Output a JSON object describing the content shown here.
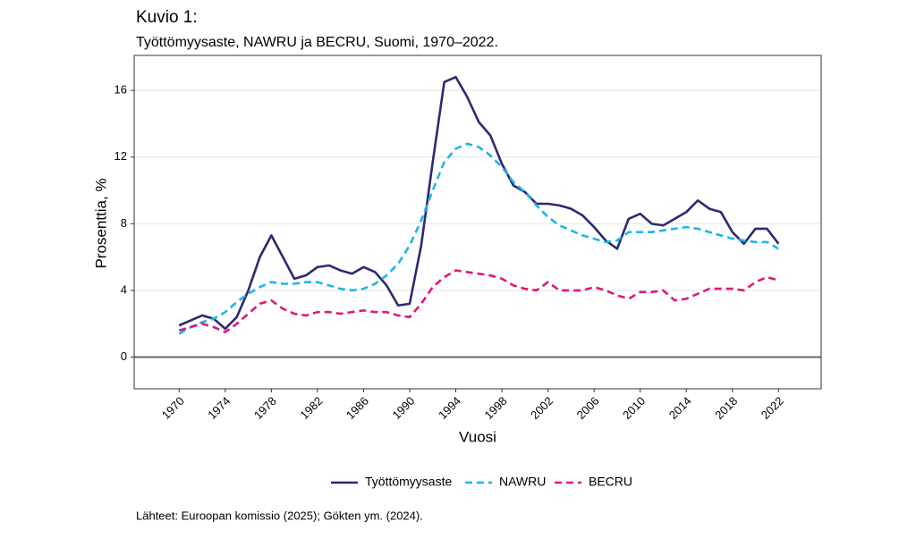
{
  "chart_data": {
    "type": "line",
    "title": "Kuvio 1:",
    "subtitle": "Työttömyysaste, NAWRU ja BECRU, Suomi, 1970–2022.",
    "x_label": "Vuosi",
    "y_label": "Prosenttia, %",
    "source": "Lähteet: Euroopan komissio (2025); Gökten ym. (2024).",
    "x": [
      1970,
      1971,
      1972,
      1973,
      1974,
      1975,
      1976,
      1977,
      1978,
      1979,
      1980,
      1981,
      1982,
      1983,
      1984,
      1985,
      1986,
      1987,
      1988,
      1989,
      1990,
      1991,
      1992,
      1993,
      1994,
      1995,
      1996,
      1997,
      1998,
      1999,
      2000,
      2001,
      2002,
      2003,
      2004,
      2005,
      2006,
      2007,
      2008,
      2009,
      2010,
      2011,
      2012,
      2013,
      2014,
      2015,
      2016,
      2017,
      2018,
      2019,
      2020,
      2021,
      2022
    ],
    "series": [
      {
        "name": "Työttömyysaste",
        "color": "#2b2a73",
        "linestyle": "solid",
        "values": [
          1.9,
          2.2,
          2.5,
          2.3,
          1.7,
          2.4,
          4.0,
          6.0,
          7.3,
          6.0,
          4.7,
          4.9,
          5.4,
          5.5,
          5.2,
          5.0,
          5.4,
          5.1,
          4.3,
          3.1,
          3.2,
          6.7,
          11.7,
          16.5,
          16.8,
          15.6,
          14.1,
          13.3,
          11.6,
          10.3,
          9.9,
          9.2,
          9.2,
          9.1,
          8.9,
          8.5,
          7.8,
          7.0,
          6.5,
          8.3,
          8.6,
          8.0,
          7.9,
          8.3,
          8.7,
          9.4,
          8.9,
          8.7,
          7.5,
          6.8,
          7.7,
          7.7,
          6.8
        ]
      },
      {
        "name": "NAWRU",
        "color": "#1fb5e8",
        "linestyle": "dashed",
        "values": [
          1.4,
          1.8,
          2.1,
          2.3,
          2.7,
          3.3,
          3.8,
          4.2,
          4.5,
          4.4,
          4.4,
          4.5,
          4.5,
          4.3,
          4.1,
          4.0,
          4.1,
          4.4,
          4.9,
          5.6,
          6.7,
          8.2,
          10.0,
          11.7,
          12.5,
          12.8,
          12.6,
          12.1,
          11.4,
          10.5,
          9.9,
          9.1,
          8.4,
          7.9,
          7.6,
          7.3,
          7.1,
          6.9,
          7.0,
          7.5,
          7.5,
          7.5,
          7.6,
          7.7,
          7.8,
          7.7,
          7.5,
          7.3,
          7.1,
          7.0,
          6.9,
          6.9,
          6.5
        ]
      },
      {
        "name": "BECRU",
        "color": "#e0177a",
        "linestyle": "dashed",
        "values": [
          1.6,
          1.8,
          2.0,
          1.8,
          1.5,
          2.0,
          2.6,
          3.2,
          3.4,
          2.9,
          2.6,
          2.5,
          2.7,
          2.7,
          2.6,
          2.7,
          2.8,
          2.7,
          2.7,
          2.5,
          2.4,
          3.2,
          4.2,
          4.8,
          5.2,
          5.1,
          5.0,
          4.9,
          4.7,
          4.3,
          4.1,
          4.0,
          4.5,
          4.0,
          4.0,
          4.0,
          4.2,
          4.0,
          3.7,
          3.5,
          3.9,
          3.9,
          4.0,
          3.4,
          3.5,
          3.8,
          4.1,
          4.1,
          4.1,
          4.0,
          4.5,
          4.8,
          4.6
        ]
      }
    ],
    "xlim": [
      1966.1,
      2025.7
    ],
    "xticks": [
      1970,
      1974,
      1978,
      1982,
      1986,
      1990,
      1994,
      1998,
      2002,
      2006,
      2010,
      2014,
      2018,
      2022
    ],
    "ylim": [
      -1.9,
      18.1
    ],
    "yticks": [
      0,
      4,
      8,
      12,
      16
    ],
    "hline": 0,
    "grid": true,
    "legend": "bottom"
  }
}
